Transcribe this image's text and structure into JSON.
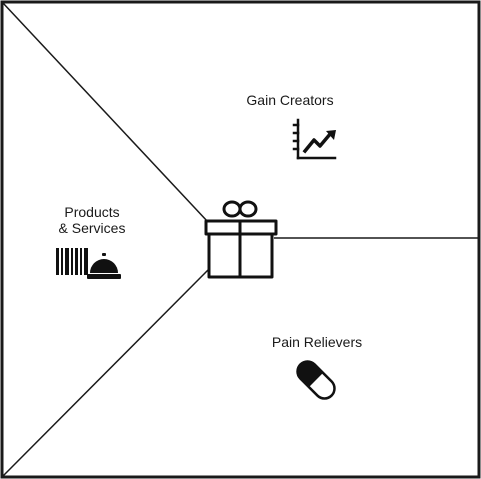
{
  "canvas": {
    "background": "#ffffff",
    "stroke_color": "#1a1a1a"
  },
  "sections": {
    "gain_creators": {
      "label": "Gain Creators",
      "icon": "growth-chart-icon"
    },
    "products_services": {
      "label_line1": "Products",
      "label_line2": "& Services",
      "icon": "barcode-and-service-bell-icon"
    },
    "pain_relievers": {
      "label": "Pain Relievers",
      "icon": "pill-capsule-icon"
    },
    "center": {
      "icon": "gift-box-icon"
    }
  }
}
